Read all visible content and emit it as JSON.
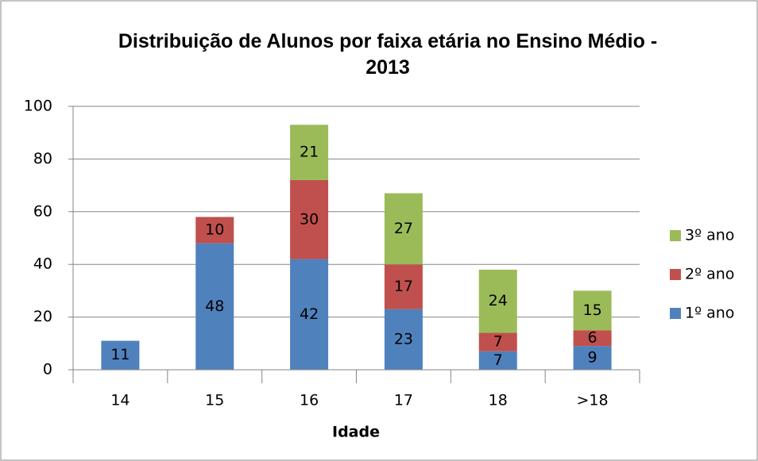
{
  "chart_data": {
    "type": "stacked_bar",
    "title": "Distribuição de Alunos por faixa etária no Ensino Médio - 2013",
    "x_label": "Idade",
    "categories": [
      "14",
      "15",
      "16",
      "17",
      "18",
      ">18"
    ],
    "series": [
      {
        "name": "1º ano",
        "color": "#4f81bd",
        "values": [
          11,
          48,
          42,
          23,
          7,
          9
        ]
      },
      {
        "name": "2º ano",
        "color": "#c0504d",
        "values": [
          null,
          10,
          30,
          17,
          7,
          6
        ]
      },
      {
        "name": "3º ano",
        "color": "#9bbb59",
        "values": [
          null,
          null,
          21,
          27,
          24,
          15
        ]
      }
    ],
    "ylim": [
      0,
      100
    ],
    "yticks": [
      0,
      20,
      40,
      60,
      80,
      100
    ],
    "grid": true,
    "legend": "right"
  }
}
